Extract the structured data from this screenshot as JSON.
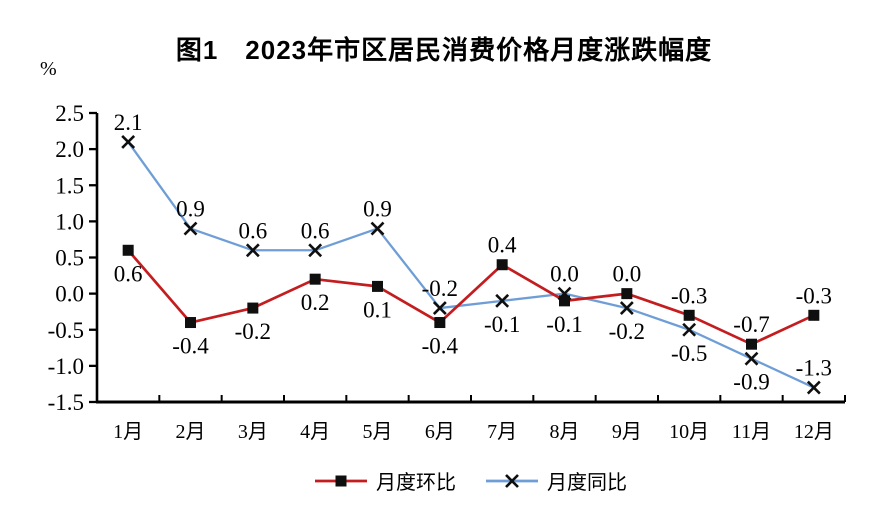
{
  "title": "图1　2023年市区居民消费价格月度涨跌幅度",
  "unit_label": "%",
  "colors": {
    "mom_line": "#c41d1f",
    "yoy_line": "#6f9ed6",
    "marker": "#0f0f0f",
    "axis": "#000000",
    "label_text": "#000000"
  },
  "legend": [
    {
      "label": "月度环比",
      "marker": "square",
      "line_color": "#c41d1f"
    },
    {
      "label": "月度同比",
      "marker": "x",
      "line_color": "#6f9ed6"
    }
  ],
  "chart_data": {
    "type": "line",
    "title": "图1　2023年市区居民消费价格月度涨跌幅度",
    "ylabel": "%",
    "xlabel": "",
    "categories": [
      "1月",
      "2月",
      "3月",
      "4月",
      "5月",
      "6月",
      "7月",
      "8月",
      "9月",
      "10月",
      "11月",
      "12月"
    ],
    "series": [
      {
        "name": "月度环比",
        "color": "#c41d1f",
        "marker": "square",
        "marker_color": "#0f0f0f",
        "values": [
          0.6,
          -0.4,
          -0.2,
          0.2,
          0.1,
          -0.4,
          0.4,
          -0.1,
          0.0,
          -0.3,
          -0.7,
          -0.3
        ],
        "label_side": [
          "below",
          "below",
          "below",
          "below",
          "below",
          "below",
          "above",
          "below",
          "above",
          "above",
          "above",
          "above"
        ]
      },
      {
        "name": "月度同比",
        "color": "#6f9ed6",
        "marker": "x",
        "marker_color": "#0f0f0f",
        "values": [
          2.1,
          0.9,
          0.6,
          0.6,
          0.9,
          -0.2,
          -0.1,
          0.0,
          -0.2,
          -0.5,
          -0.9,
          -1.3
        ],
        "label_side": [
          "above",
          "above",
          "above",
          "above",
          "above",
          "above",
          "below",
          "above",
          "below",
          "below",
          "below",
          "above"
        ]
      }
    ],
    "ylim": [
      -1.5,
      2.5
    ],
    "y_tick_step": 0.5,
    "y_tick_labels": [
      "2.5",
      "2.0",
      "1.5",
      "1.0",
      "0.5",
      "0.0",
      "-0.5",
      "-1.0",
      "-1.5"
    ],
    "grid": false,
    "legend_position": "bottom",
    "data_labels_decimals": 1
  }
}
